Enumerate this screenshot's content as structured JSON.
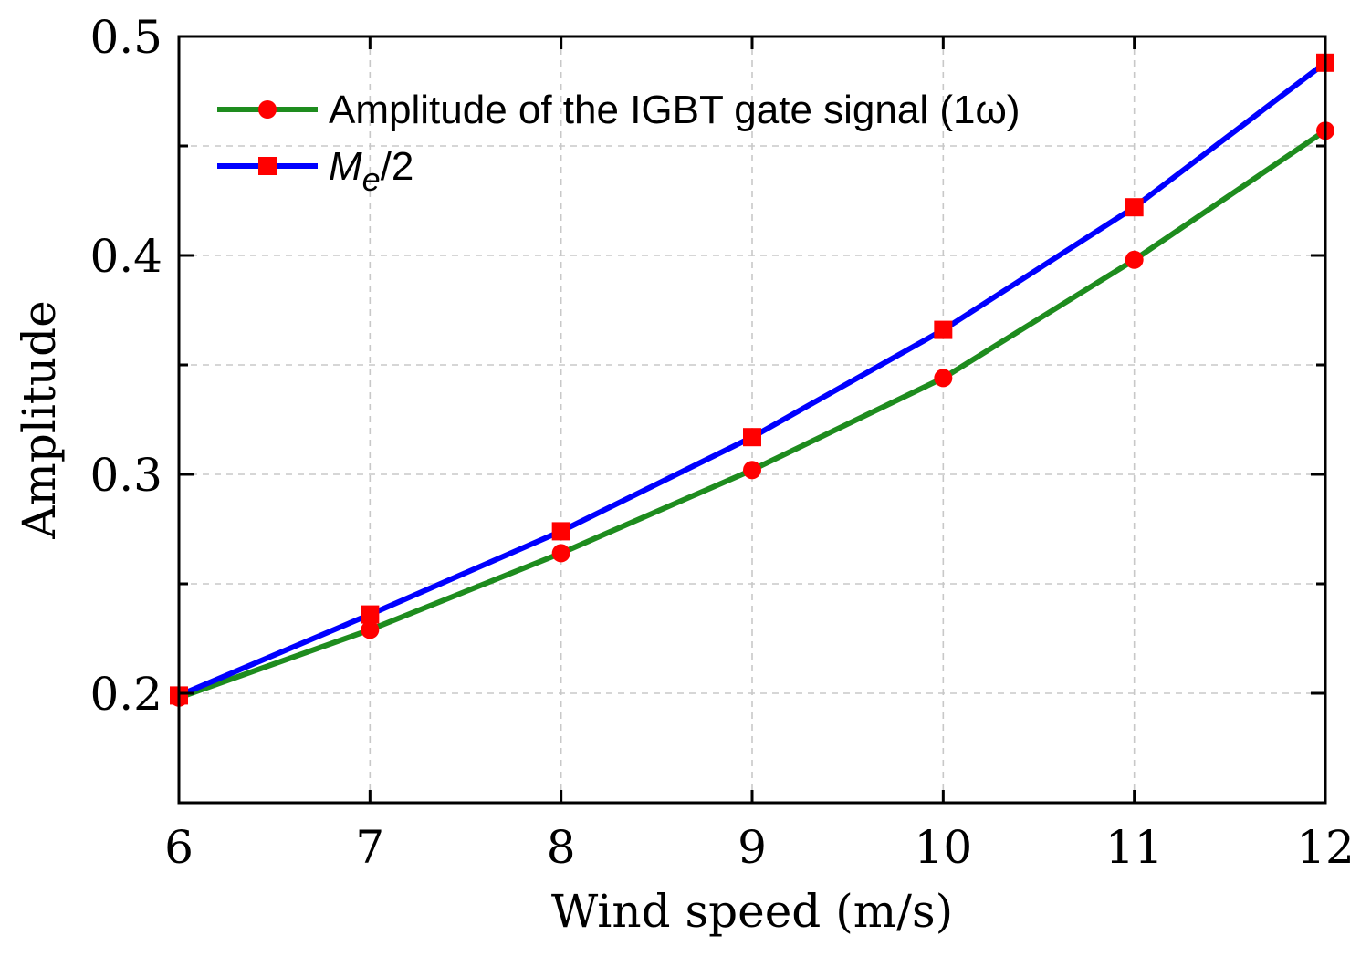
{
  "chart_data": {
    "type": "line",
    "title": "",
    "xlabel": "Wind speed (m/s)",
    "ylabel": "Amplitude",
    "xlim": [
      6,
      12
    ],
    "ylim": [
      0.15,
      0.5
    ],
    "x_ticks": [
      6,
      7,
      8,
      9,
      10,
      11,
      12
    ],
    "x_tick_labels": [
      "6",
      "7",
      "8",
      "9",
      "10",
      "11",
      "12"
    ],
    "y_ticks": [
      0.2,
      0.3,
      0.4,
      0.5
    ],
    "y_tick_labels": [
      "0.2",
      "0.3",
      "0.4",
      "0.5"
    ],
    "y_minor_ticks": [
      0.25,
      0.35,
      0.45
    ],
    "grid": true,
    "legend_position": "top-left",
    "x": [
      6,
      7,
      8,
      9,
      10,
      11,
      12
    ],
    "series": [
      {
        "name": "Amplitude of the IGBT gate signal (1ω)",
        "values": [
          0.198,
          0.229,
          0.264,
          0.302,
          0.344,
          0.398,
          0.457
        ],
        "line_color": "#1e8c1e",
        "marker": "circle",
        "marker_color": "#ff0000"
      },
      {
        "name": "M_e/2",
        "legend_main": "M",
        "legend_sub": "e",
        "legend_tail": "/2",
        "values": [
          0.199,
          0.236,
          0.274,
          0.317,
          0.366,
          0.422,
          0.488
        ],
        "line_color": "#0000ff",
        "marker": "square",
        "marker_color": "#ff0000"
      }
    ]
  }
}
